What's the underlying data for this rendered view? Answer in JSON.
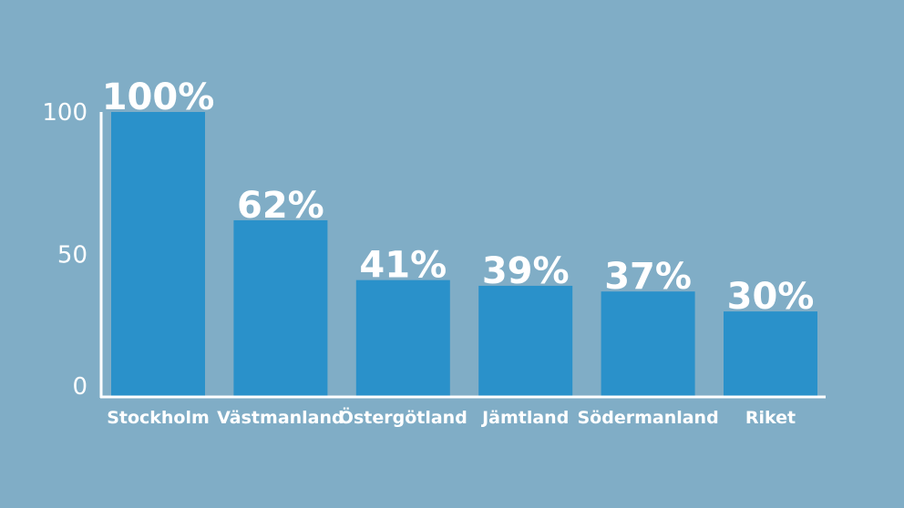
{
  "chart_data": {
    "type": "bar",
    "title": "",
    "xlabel": "",
    "ylabel": "",
    "categories": [
      "Stockholm",
      "Västmanland",
      "Östergötland",
      "Jämtland",
      "Södermanland",
      "Riket"
    ],
    "values": [
      100,
      62,
      41,
      39,
      37,
      30
    ],
    "data_labels": [
      "100%",
      "62%",
      "41%",
      "39%",
      "37%",
      "30%"
    ],
    "ylim": [
      0,
      100
    ],
    "yticks": [
      0,
      50,
      100
    ],
    "ytick_labels": [
      "0",
      "50",
      "100"
    ],
    "grid": false,
    "legend": "none",
    "colors": {
      "background": "#80adc6",
      "bar": "#2a91ca",
      "text": "#ffffff",
      "axis": "#ffffff"
    }
  }
}
